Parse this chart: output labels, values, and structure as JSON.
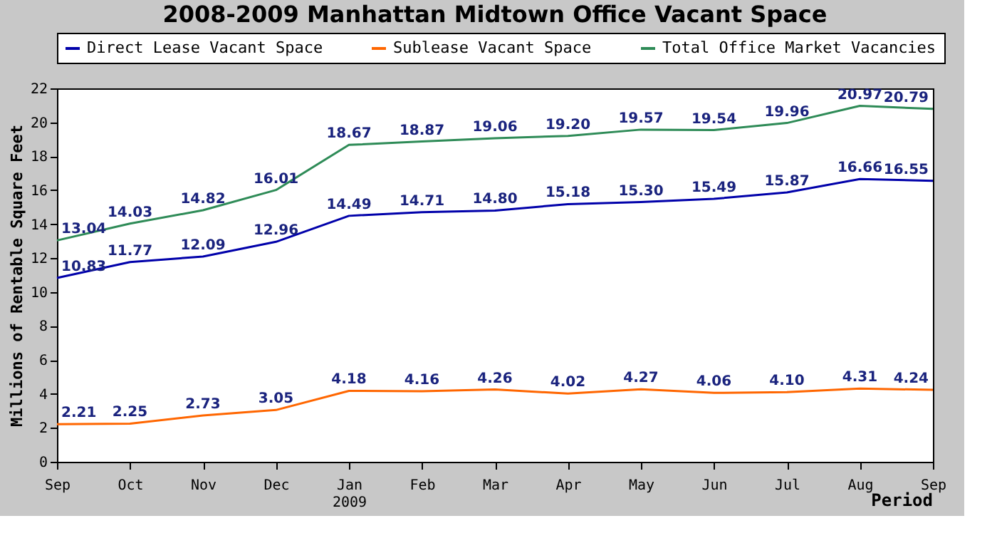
{
  "chart_data": {
    "type": "line",
    "title": "2008-2009 Manhattan Midtown Office Vacant Space",
    "categories": [
      "Sep",
      "Oct",
      "Nov",
      "Dec",
      "Jan\n2009",
      "Feb",
      "Mar",
      "Apr",
      "May",
      "Jun",
      "Jul",
      "Aug",
      "Sep"
    ],
    "series": [
      {
        "name": "Direct Lease Vacant Space",
        "color": "#0000aa",
        "values": [
          10.83,
          11.77,
          12.09,
          12.96,
          14.49,
          14.71,
          14.8,
          15.18,
          15.3,
          15.49,
          15.87,
          16.66,
          16.55
        ],
        "value_labels": [
          "10.83",
          "11.77",
          "12.09",
          "12.96",
          "14.49",
          "14.71",
          "14.80",
          "15.18",
          "15.30",
          "15.49",
          "15.87",
          "16.66",
          "16.55"
        ]
      },
      {
        "name": "Sublease Vacant Space",
        "color": "#ff6600",
        "values": [
          2.21,
          2.25,
          2.73,
          3.05,
          4.18,
          4.16,
          4.26,
          4.02,
          4.27,
          4.06,
          4.1,
          4.31,
          4.24
        ],
        "value_labels": [
          "2.21",
          "2.25",
          "2.73",
          "3.05",
          "4.18",
          "4.16",
          "4.26",
          "4.02",
          "4.27",
          "4.06",
          "4.10",
          "4.31",
          "4.24"
        ]
      },
      {
        "name": "Total Office Market Vacancies",
        "color": "#2e8b57",
        "values": [
          13.04,
          14.03,
          14.82,
          16.01,
          18.67,
          18.87,
          19.06,
          19.2,
          19.57,
          19.54,
          19.96,
          20.97,
          20.79
        ],
        "value_labels": [
          "13.04",
          "14.03",
          "14.82",
          "16.01",
          "18.67",
          "18.87",
          "19.06",
          "19.20",
          "19.57",
          "19.54",
          "19.96",
          "20.97",
          "20.79"
        ]
      }
    ],
    "xlabel": "Period",
    "ylabel": "Millions of Rentable Square Feet",
    "ylim": [
      0,
      22
    ],
    "yticks": [
      0,
      2,
      4,
      6,
      8,
      10,
      12,
      14,
      16,
      18,
      20,
      22
    ],
    "grid": false,
    "legend": "top right",
    "marker": "none",
    "line_style": "solid"
  }
}
